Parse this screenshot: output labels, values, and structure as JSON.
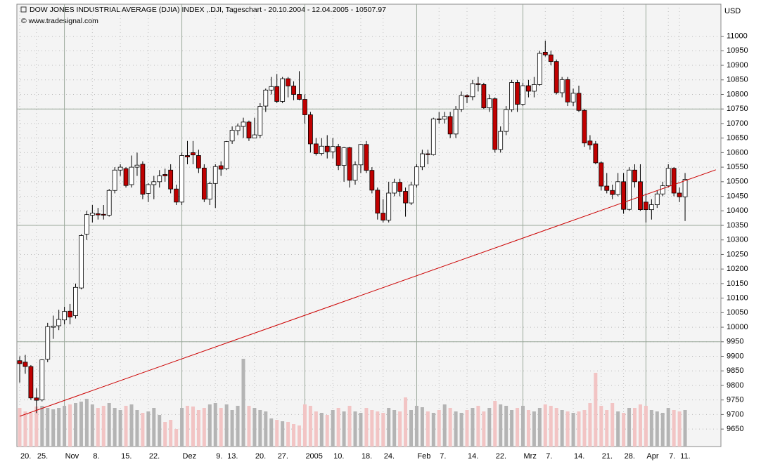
{
  "chart_data": {
    "type": "candlestick",
    "title": "DOW JONES INDUSTRIAL AVERAGE (DJIA) INDEX ,.DJI, Tageschart - 20.10.2004 - 12.04.2005 - 10507.97",
    "subtitle": "© www.tradesignal.com",
    "y_unit": "USD",
    "categories": [
      "20.",
      null,
      null,
      "25.",
      null,
      null,
      null,
      null,
      "Nov",
      null,
      null,
      null,
      null,
      "8.",
      null,
      null,
      null,
      null,
      "15.",
      null,
      null,
      null,
      null,
      "22.",
      null,
      null,
      null,
      null,
      null,
      "Dez",
      null,
      null,
      null,
      null,
      null,
      "9.",
      null,
      "13.",
      null,
      null,
      null,
      null,
      "20.",
      null,
      null,
      null,
      "27.",
      null,
      null,
      null,
      null,
      "2005",
      null,
      null,
      null,
      null,
      "10.",
      null,
      null,
      null,
      null,
      "18.",
      null,
      null,
      null,
      "24.",
      null,
      null,
      null,
      null,
      null,
      "Feb",
      null,
      null,
      null,
      "7.",
      null,
      null,
      null,
      null,
      "14.",
      null,
      null,
      null,
      null,
      "22.",
      null,
      null,
      null,
      null,
      "Mrz",
      null,
      null,
      null,
      "7.",
      null,
      null,
      null,
      null,
      "14.",
      null,
      null,
      null,
      null,
      "21.",
      null,
      null,
      null,
      "28.",
      null,
      null,
      null,
      "Apr",
      null,
      null,
      null,
      "7.",
      null,
      "11.",
      null
    ],
    "open": [
      9885,
      9880,
      9865,
      9757,
      9750,
      9890,
      10000,
      10005,
      10025,
      10055,
      10040,
      10135,
      10320,
      10385,
      10390,
      10388,
      10385,
      10470,
      10540,
      10545,
      10490,
      10550,
      10560,
      10460,
      10490,
      10500,
      10525,
      10540,
      10475,
      10430,
      10590,
      10600,
      10590,
      10547,
      10440,
      10494,
      10555,
      10545,
      10640,
      10676,
      10690,
      10705,
      10650,
      10660,
      10760,
      10815,
      10827,
      10776,
      10854,
      10829,
      10800,
      10783,
      10730,
      10630,
      10597,
      10622,
      10603,
      10621,
      10556,
      10617,
      10505,
      10558,
      10628,
      10539,
      10471,
      10392,
      10368,
      10461,
      10498,
      10467,
      10427,
      10489,
      10551,
      10596,
      10593,
      10716,
      10715,
      10724,
      10664,
      10749,
      10796,
      10792,
      10837,
      10834,
      10754,
      10785,
      10611,
      10673,
      10748,
      10841,
      10766,
      10830,
      10811,
      10834,
      10945,
      10936,
      10913,
      10806,
      10851,
      10774,
      10804,
      10745,
      10640,
      10630,
      10565,
      10485,
      10470,
      10456,
      10500,
      10405,
      10540,
      10500,
      10430,
      10404,
      10421,
      10458,
      10486,
      10546,
      10461,
      10448
    ],
    "high": [
      9900,
      9905,
      9870,
      9790,
      9890,
      10015,
      10040,
      10060,
      10070,
      10080,
      10150,
      10320,
      10400,
      10420,
      10410,
      10420,
      10475,
      10550,
      10560,
      10550,
      10590,
      10600,
      10570,
      10495,
      10520,
      10540,
      10545,
      10560,
      10490,
      10600,
      10640,
      10640,
      10610,
      10560,
      10500,
      10560,
      10570,
      10640,
      10690,
      10700,
      10720,
      10710,
      10720,
      10770,
      10820,
      10860,
      10870,
      10860,
      10860,
      10845,
      10880,
      10800,
      10740,
      10650,
      10650,
      10660,
      10650,
      10630,
      10620,
      10620,
      10570,
      10630,
      10640,
      10550,
      10480,
      10440,
      10500,
      10510,
      10510,
      10480,
      10500,
      10560,
      10610,
      10610,
      10720,
      10740,
      10740,
      10740,
      10760,
      10810,
      10800,
      10850,
      10860,
      10840,
      10800,
      10790,
      10690,
      10760,
      10850,
      10850,
      10840,
      10850,
      10860,
      10950,
      10985,
      10950,
      10920,
      10860,
      10860,
      10820,
      10830,
      10750,
      10660,
      10640,
      10570,
      10530,
      10490,
      10530,
      10530,
      10550,
      10560,
      10560,
      10460,
      10440,
      10470,
      10500,
      10560,
      10550,
      10480,
      10530
    ],
    "low": [
      9810,
      9840,
      9750,
      9705,
      9745,
      9880,
      9960,
      9990,
      10010,
      10010,
      10030,
      10130,
      10300,
      10360,
      10370,
      10370,
      10380,
      10460,
      10520,
      10480,
      10480,
      10520,
      10440,
      10430,
      10440,
      10480,
      10500,
      10460,
      10420,
      10420,
      10560,
      10560,
      10530,
      10430,
      10420,
      10410,
      10520,
      10540,
      10630,
      10660,
      10650,
      10640,
      10650,
      10650,
      10740,
      10800,
      10770,
      10770,
      10790,
      10780,
      10780,
      10700,
      10600,
      10590,
      10590,
      10580,
      10580,
      10540,
      10500,
      10480,
      10490,
      10530,
      10530,
      10460,
      10370,
      10360,
      10360,
      10450,
      10450,
      10380,
      10420,
      10480,
      10540,
      10560,
      10590,
      10700,
      10700,
      10650,
      10650,
      10740,
      10770,
      10780,
      10810,
      10750,
      10740,
      10600,
      10600,
      10660,
      10740,
      10740,
      10760,
      10790,
      10790,
      10830,
      10930,
      10900,
      10800,
      10790,
      10760,
      10760,
      10740,
      10620,
      10610,
      10560,
      10470,
      10460,
      10440,
      10450,
      10390,
      10400,
      10480,
      10400,
      10360,
      10370,
      10410,
      10450,
      10480,
      10450,
      10430,
      10365
    ],
    "close": [
      9875,
      9865,
      9757,
      9749,
      9888,
      10002,
      10004,
      10027,
      10054,
      10035,
      10137,
      10315,
      10387,
      10392,
      10386,
      10385,
      10470,
      10540,
      10550,
      10487,
      10550,
      10557,
      10457,
      10490,
      10500,
      10520,
      10520,
      10475,
      10430,
      10590,
      10585,
      10592,
      10547,
      10440,
      10494,
      10552,
      10543,
      10638,
      10677,
      10691,
      10705,
      10650,
      10661,
      10759,
      10815,
      10827,
      10776,
      10854,
      10829,
      10800,
      10783,
      10730,
      10630,
      10597,
      10622,
      10603,
      10621,
      10556,
      10617,
      10505,
      10558,
      10628,
      10539,
      10471,
      10392,
      10368,
      10461,
      10498,
      10467,
      10427,
      10489,
      10551,
      10596,
      10593,
      10716,
      10715,
      10724,
      10664,
      10749,
      10796,
      10792,
      10837,
      10834,
      10754,
      10785,
      10611,
      10673,
      10748,
      10841,
      10766,
      10830,
      10811,
      10834,
      10941,
      10936,
      10913,
      10806,
      10851,
      10774,
      10804,
      10745,
      10633,
      10626,
      10565,
      10485,
      10470,
      10456,
      10500,
      10405,
      10540,
      10500,
      10404,
      10404,
      10421,
      10458,
      10486,
      10546,
      10461,
      10448,
      10508
    ],
    "volume": [
      55,
      50,
      48,
      57,
      58,
      55,
      53,
      55,
      58,
      60,
      62,
      64,
      68,
      60,
      55,
      58,
      62,
      55,
      52,
      58,
      60,
      52,
      48,
      50,
      55,
      45,
      35,
      38,
      25,
      55,
      58,
      57,
      52,
      55,
      60,
      62,
      55,
      60,
      52,
      58,
      125,
      58,
      55,
      52,
      50,
      40,
      38,
      36,
      35,
      32,
      30,
      60,
      58,
      50,
      48,
      45,
      52,
      55,
      50,
      58,
      50,
      48,
      55,
      52,
      50,
      48,
      55,
      52,
      50,
      70,
      52,
      58,
      56,
      50,
      48,
      52,
      60,
      55,
      50,
      48,
      52,
      55,
      58,
      50,
      55,
      65,
      60,
      58,
      52,
      55,
      58,
      52,
      50,
      55,
      60,
      58,
      55,
      52,
      50,
      48,
      50,
      52,
      62,
      105,
      58,
      52,
      62,
      50,
      48,
      55,
      55,
      60,
      58,
      52,
      50,
      48,
      55,
      52,
      50,
      52
    ],
    "up_color": "#ffffff",
    "down_color": "#c00000",
    "volume_up_color": "#b4b4b4",
    "volume_down_color": "#f2c4c4",
    "trendline": {
      "x": [
        0,
        124.5
      ],
      "y": [
        9694,
        10541
      ],
      "color": "#cc0000"
    },
    "ylim": [
      9590,
      11110
    ],
    "yticks": [
      9650,
      9700,
      9750,
      9800,
      9850,
      9900,
      9950,
      10000,
      10050,
      10100,
      10150,
      10200,
      10250,
      10300,
      10350,
      10400,
      10450,
      10500,
      10550,
      10600,
      10650,
      10700,
      10750,
      10800,
      10850,
      10900,
      10950,
      11000
    ],
    "ygrid_major": [
      9950,
      10350,
      10750
    ],
    "grid": true
  }
}
